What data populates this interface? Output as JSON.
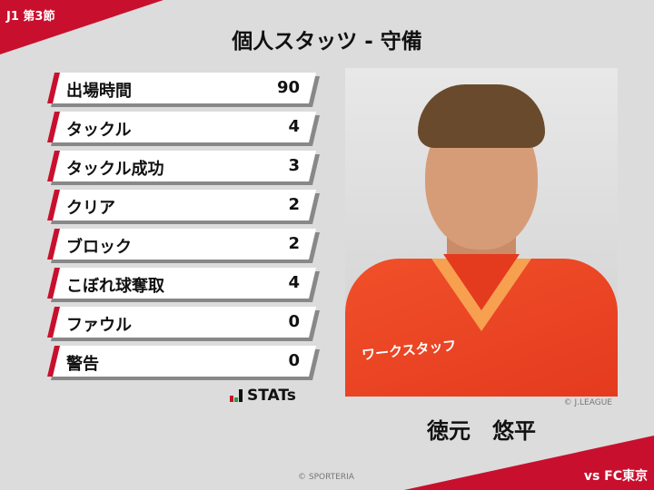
{
  "header": {
    "round": "J1 第3節",
    "title": "個人スタッツ - 守備"
  },
  "stats": [
    {
      "label": "出場時間",
      "value": "90"
    },
    {
      "label": "タックル",
      "value": "4"
    },
    {
      "label": "タックル成功",
      "value": "3"
    },
    {
      "label": "クリア",
      "value": "2"
    },
    {
      "label": "ブロック",
      "value": "2"
    },
    {
      "label": "こぼれ球奪取",
      "value": "4"
    },
    {
      "label": "ファウル",
      "value": "0"
    },
    {
      "label": "警告",
      "value": "0"
    }
  ],
  "brand": {
    "logo_text": "STATs",
    "logo_icon": "bar-chart-icon",
    "colors": [
      "#c8102e",
      "#2e9a3e",
      "#111111"
    ]
  },
  "player": {
    "name": "徳元　悠平",
    "photo_credit": "© J.LEAGUE",
    "jersey_sponsor": "ワークスタッフ"
  },
  "footer": {
    "copyright": "© SPORTERIA",
    "opponent": "vs FC東京"
  },
  "colors": {
    "accent": "#c8102e",
    "background": "#dcdcdc"
  }
}
